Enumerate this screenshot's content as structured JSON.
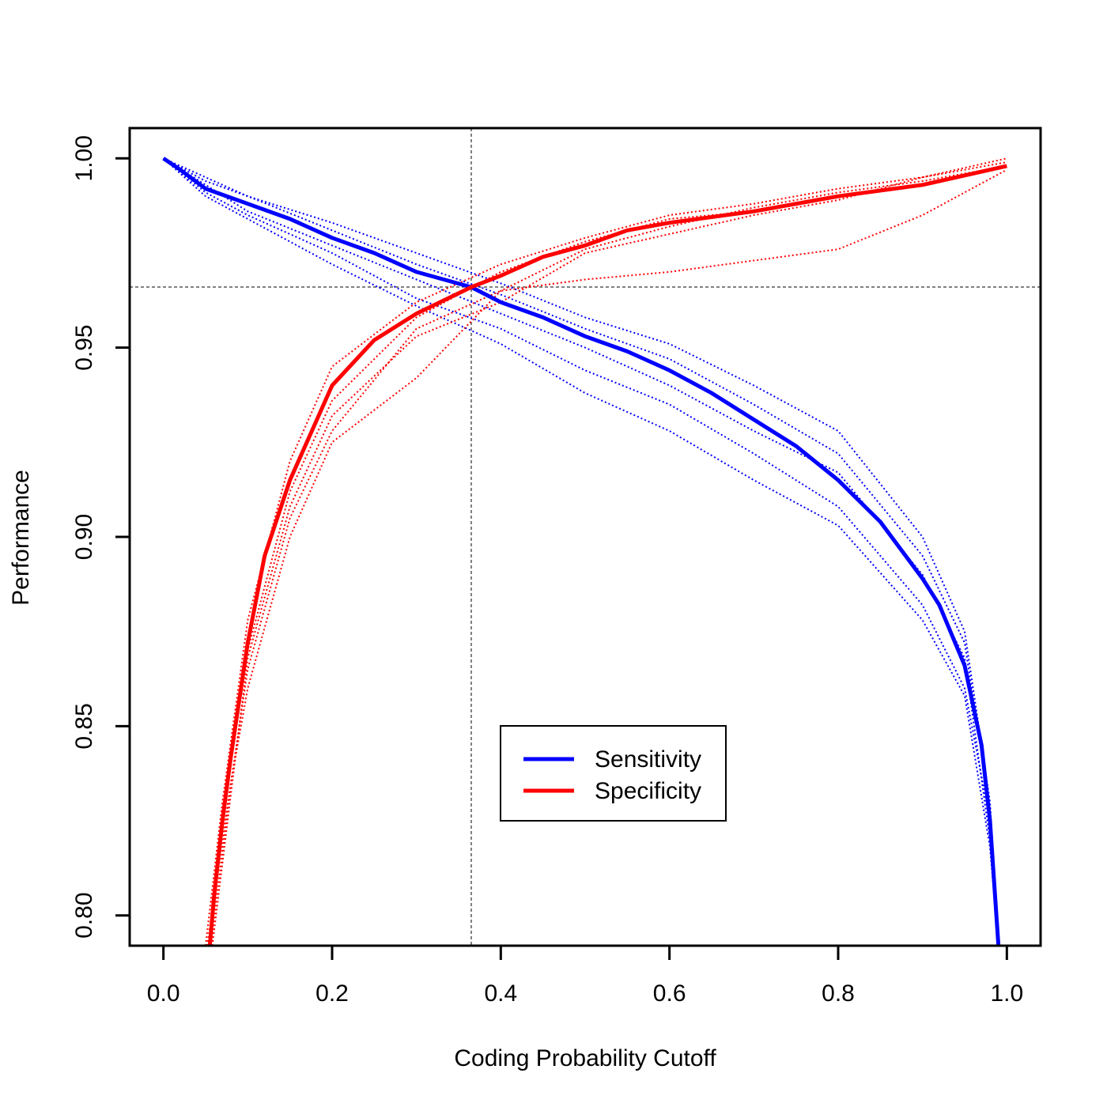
{
  "chart_data": {
    "type": "line",
    "title": "",
    "xlabel": "Coding Probability Cutoff",
    "ylabel": "Performance",
    "xlim": [
      -0.04,
      1.04
    ],
    "ylim": [
      0.792,
      1.008
    ],
    "x_ticks": [
      0.0,
      0.2,
      0.4,
      0.6,
      0.8,
      1.0
    ],
    "x_tick_labels": [
      "0.0",
      "0.2",
      "0.4",
      "0.6",
      "0.8",
      "1.0"
    ],
    "y_ticks": [
      0.8,
      0.85,
      0.9,
      0.95,
      1.0
    ],
    "y_tick_labels": [
      "0.80",
      "0.85",
      "0.90",
      "0.95",
      "1.00"
    ],
    "legend_position": "center-bottom",
    "reference_lines": {
      "vertical_x": 0.365,
      "horizontal_y": 0.966
    },
    "colors": {
      "sensitivity": "#0000ff",
      "specificity": "#ff0000",
      "reference": "#000000"
    },
    "series": [
      {
        "name": "Sensitivity",
        "x": [
          0.0,
          0.02,
          0.05,
          0.1,
          0.15,
          0.2,
          0.25,
          0.3,
          0.365,
          0.4,
          0.45,
          0.5,
          0.55,
          0.6,
          0.65,
          0.7,
          0.75,
          0.8,
          0.85,
          0.9,
          0.92,
          0.95,
          0.97,
          0.98,
          0.99
        ],
        "y": [
          1.0,
          0.997,
          0.992,
          0.988,
          0.984,
          0.979,
          0.975,
          0.97,
          0.966,
          0.962,
          0.958,
          0.953,
          0.949,
          0.944,
          0.938,
          0.931,
          0.924,
          0.915,
          0.904,
          0.889,
          0.882,
          0.866,
          0.845,
          0.825,
          0.792
        ]
      },
      {
        "name": "Specificity",
        "x": [
          0.055,
          0.06,
          0.07,
          0.08,
          0.1,
          0.12,
          0.15,
          0.18,
          0.2,
          0.25,
          0.3,
          0.365,
          0.4,
          0.45,
          0.5,
          0.55,
          0.6,
          0.7,
          0.8,
          0.9,
          1.0
        ],
        "y": [
          0.792,
          0.805,
          0.825,
          0.842,
          0.872,
          0.895,
          0.915,
          0.93,
          0.94,
          0.952,
          0.959,
          0.966,
          0.969,
          0.974,
          0.977,
          0.981,
          0.983,
          0.986,
          0.99,
          0.993,
          0.998
        ]
      }
    ],
    "replicate_series": {
      "Sensitivity": [
        [
          [
            0.0,
            1.0
          ],
          [
            0.05,
            0.991
          ],
          [
            0.1,
            0.985
          ],
          [
            0.2,
            0.975
          ],
          [
            0.3,
            0.963
          ],
          [
            0.4,
            0.955
          ],
          [
            0.5,
            0.944
          ],
          [
            0.6,
            0.935
          ],
          [
            0.7,
            0.922
          ],
          [
            0.8,
            0.908
          ],
          [
            0.9,
            0.882
          ],
          [
            0.95,
            0.86
          ],
          [
            0.98,
            0.825
          ],
          [
            0.99,
            0.792
          ]
        ],
        [
          [
            0.0,
            1.0
          ],
          [
            0.05,
            0.994
          ],
          [
            0.1,
            0.99
          ],
          [
            0.2,
            0.983
          ],
          [
            0.3,
            0.975
          ],
          [
            0.4,
            0.967
          ],
          [
            0.5,
            0.958
          ],
          [
            0.6,
            0.951
          ],
          [
            0.7,
            0.94
          ],
          [
            0.8,
            0.928
          ],
          [
            0.9,
            0.9
          ],
          [
            0.95,
            0.875
          ],
          [
            0.98,
            0.83
          ],
          [
            0.99,
            0.792
          ]
        ],
        [
          [
            0.0,
            1.0
          ],
          [
            0.05,
            0.993
          ],
          [
            0.1,
            0.986
          ],
          [
            0.2,
            0.977
          ],
          [
            0.3,
            0.968
          ],
          [
            0.4,
            0.959
          ],
          [
            0.5,
            0.95
          ],
          [
            0.6,
            0.94
          ],
          [
            0.7,
            0.928
          ],
          [
            0.8,
            0.917
          ],
          [
            0.9,
            0.89
          ],
          [
            0.95,
            0.868
          ],
          [
            0.98,
            0.82
          ],
          [
            0.99,
            0.792
          ]
        ],
        [
          [
            0.0,
            1.0
          ],
          [
            0.05,
            0.995
          ],
          [
            0.1,
            0.99
          ],
          [
            0.2,
            0.981
          ],
          [
            0.3,
            0.972
          ],
          [
            0.4,
            0.964
          ],
          [
            0.5,
            0.955
          ],
          [
            0.6,
            0.947
          ],
          [
            0.7,
            0.935
          ],
          [
            0.8,
            0.922
          ],
          [
            0.9,
            0.895
          ],
          [
            0.95,
            0.872
          ],
          [
            0.98,
            0.828
          ],
          [
            0.99,
            0.792
          ]
        ],
        [
          [
            0.0,
            1.0
          ],
          [
            0.05,
            0.99
          ],
          [
            0.1,
            0.984
          ],
          [
            0.2,
            0.972
          ],
          [
            0.3,
            0.961
          ],
          [
            0.4,
            0.951
          ],
          [
            0.5,
            0.938
          ],
          [
            0.6,
            0.928
          ],
          [
            0.7,
            0.915
          ],
          [
            0.8,
            0.903
          ],
          [
            0.9,
            0.878
          ],
          [
            0.95,
            0.858
          ],
          [
            0.98,
            0.818
          ],
          [
            0.99,
            0.792
          ]
        ]
      ],
      "Specificity": [
        [
          [
            0.05,
            0.792
          ],
          [
            0.07,
            0.83
          ],
          [
            0.1,
            0.878
          ],
          [
            0.15,
            0.92
          ],
          [
            0.2,
            0.945
          ],
          [
            0.3,
            0.962
          ],
          [
            0.4,
            0.972
          ],
          [
            0.5,
            0.979
          ],
          [
            0.6,
            0.985
          ],
          [
            0.7,
            0.988
          ],
          [
            0.8,
            0.992
          ],
          [
            0.9,
            0.995
          ],
          [
            1.0,
            0.999
          ]
        ],
        [
          [
            0.052,
            0.792
          ],
          [
            0.07,
            0.82
          ],
          [
            0.1,
            0.865
          ],
          [
            0.15,
            0.905
          ],
          [
            0.2,
            0.928
          ],
          [
            0.3,
            0.955
          ],
          [
            0.4,
            0.965
          ],
          [
            0.5,
            0.968
          ],
          [
            0.6,
            0.97
          ],
          [
            0.7,
            0.973
          ],
          [
            0.8,
            0.976
          ],
          [
            0.9,
            0.985
          ],
          [
            1.0,
            0.997
          ]
        ],
        [
          [
            0.056,
            0.792
          ],
          [
            0.08,
            0.835
          ],
          [
            0.1,
            0.86
          ],
          [
            0.15,
            0.9
          ],
          [
            0.2,
            0.925
          ],
          [
            0.3,
            0.942
          ],
          [
            0.4,
            0.965
          ],
          [
            0.5,
            0.976
          ],
          [
            0.6,
            0.982
          ],
          [
            0.7,
            0.987
          ],
          [
            0.8,
            0.991
          ],
          [
            0.9,
            0.994
          ],
          [
            1.0,
            0.998
          ]
        ],
        [
          [
            0.055,
            0.792
          ],
          [
            0.07,
            0.828
          ],
          [
            0.1,
            0.87
          ],
          [
            0.15,
            0.912
          ],
          [
            0.2,
            0.936
          ],
          [
            0.3,
            0.958
          ],
          [
            0.4,
            0.97
          ],
          [
            0.5,
            0.978
          ],
          [
            0.6,
            0.984
          ],
          [
            0.7,
            0.986
          ],
          [
            0.8,
            0.99
          ],
          [
            0.9,
            0.993
          ],
          [
            1.0,
            0.998
          ]
        ],
        [
          [
            0.058,
            0.792
          ],
          [
            0.08,
            0.832
          ],
          [
            0.1,
            0.868
          ],
          [
            0.15,
            0.908
          ],
          [
            0.2,
            0.932
          ],
          [
            0.3,
            0.953
          ],
          [
            0.4,
            0.962
          ],
          [
            0.5,
            0.975
          ],
          [
            0.6,
            0.98
          ],
          [
            0.7,
            0.985
          ],
          [
            0.8,
            0.989
          ],
          [
            0.9,
            0.995
          ],
          [
            1.0,
            1.0
          ]
        ]
      ]
    }
  }
}
